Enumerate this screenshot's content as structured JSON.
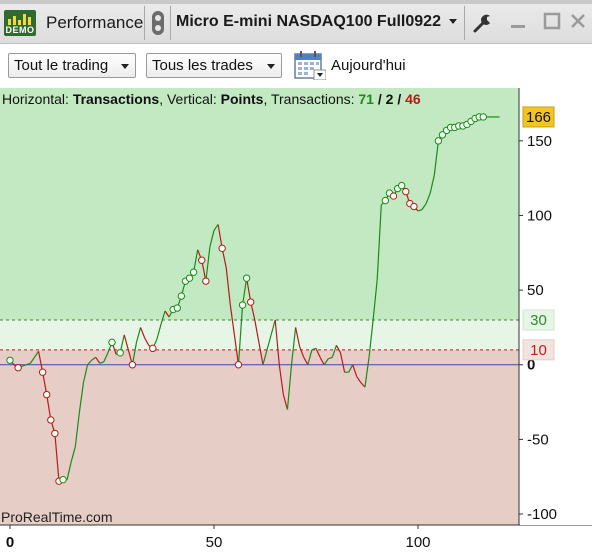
{
  "titlebar": {
    "badge_label": "DEMO",
    "panel_title": "Performance",
    "instrument": "Micro E-mini NASDAQ100 Full0922"
  },
  "toolbar": {
    "scope_select": "Tout le trading",
    "trades_select": "Tous les trades",
    "date_label": "Aujourd'hui"
  },
  "stats": {
    "horizontal_label": "Horizontal:",
    "horizontal_value": "Transactions",
    "vertical_label": "Vertical:",
    "vertical_value": "Points",
    "transactions_label": "Transactions:",
    "winners": "71",
    "neutral": "2",
    "losers": "46",
    "slash": "/"
  },
  "watermark": "ProRealTime.com",
  "colors": {
    "profit_zone": "#c2e9c2",
    "profit_band": "#e6f5e6",
    "loss_zone": "#e6cdc6",
    "gain_line": "#1b8a1b",
    "loss_line": "#b51c1c",
    "zero_line": "#3b4bb0",
    "marker_fill": "#f2fff2",
    "value_badge": "#f3c522",
    "value_30": "#2e8b2e",
    "value_10": "#b22222",
    "winners": "#1c8a1c",
    "losers": "#b01c1c"
  },
  "icons": {
    "badge": "demo-badge-icon",
    "link": "link-icon",
    "wrench": "wrench-icon",
    "minimize": "minimize-icon",
    "maximize": "maximize-icon",
    "close": "close-icon",
    "calendar": "calendar-icon"
  },
  "chart_data": {
    "type": "line",
    "xlabel": "",
    "ylabel": "",
    "xlim": [
      0,
      122
    ],
    "ylim": [
      -102,
      172
    ],
    "x_ticks": [
      0,
      50,
      100
    ],
    "y_ticks": [
      -100,
      -50,
      0,
      50,
      100,
      150
    ],
    "current_value": 166,
    "reference_levels": [
      30,
      10
    ],
    "grid": false,
    "series": [
      {
        "x": [
          0,
          1,
          2,
          3,
          4,
          5,
          6,
          7,
          8,
          9,
          10,
          11,
          12,
          13,
          14,
          15,
          16,
          17,
          18,
          19,
          20,
          21,
          22,
          23,
          24,
          25,
          26,
          27,
          28,
          29,
          30,
          31,
          32,
          33,
          34,
          35,
          36,
          37,
          38,
          39,
          40,
          41,
          42,
          43,
          44,
          45,
          46,
          47,
          48,
          49,
          50,
          51,
          52,
          53,
          54,
          55,
          56,
          57,
          58,
          59,
          60,
          61,
          62,
          63,
          64,
          65,
          66,
          67,
          68,
          69,
          70,
          71,
          72,
          73,
          74,
          75,
          76,
          77,
          78,
          79,
          80,
          81,
          82,
          83,
          84,
          85,
          86,
          87,
          88,
          89,
          90,
          91,
          92,
          93,
          94,
          95,
          96,
          97,
          98,
          99,
          100,
          101,
          102,
          103,
          104,
          105,
          106,
          107,
          108,
          109,
          110,
          111,
          112,
          113,
          114,
          115,
          116,
          117,
          118,
          119,
          120
        ],
        "y": [
          3,
          0,
          -2,
          -1,
          0,
          1,
          5,
          9,
          -5,
          -20,
          -37,
          -46,
          -78,
          -77,
          -77,
          -65,
          -55,
          -32,
          -12,
          0,
          3,
          5,
          1,
          2,
          8,
          15,
          7,
          8,
          20,
          10,
          0,
          15,
          25,
          18,
          13,
          11,
          17,
          27,
          36,
          32,
          37,
          38,
          46,
          56,
          58,
          62,
          77,
          70,
          56,
          79,
          90,
          94,
          78,
          65,
          40,
          20,
          0,
          40,
          58,
          42,
          30,
          15,
          0,
          10,
          20,
          30,
          0,
          -20,
          -30,
          0,
          25,
          12,
          5,
          0,
          10,
          11,
          5,
          0,
          4,
          5,
          13,
          8,
          -5,
          -5,
          0,
          -8,
          -12,
          -15,
          5,
          30,
          57,
          107,
          110,
          115,
          113,
          118,
          120,
          116,
          108,
          106,
          103,
          104,
          108,
          115,
          127,
          150,
          154,
          157,
          159,
          159,
          160,
          160,
          161,
          163,
          165,
          166,
          166,
          166,
          166,
          166,
          166
        ]
      }
    ],
    "markers_x": [
      0,
      2,
      8,
      9,
      10,
      11,
      12,
      13,
      25,
      27,
      30,
      35,
      40,
      41,
      42,
      43,
      44,
      45,
      47,
      48,
      52,
      56,
      57,
      58,
      59,
      92,
      93,
      94,
      95,
      96,
      97,
      98,
      99,
      105,
      106,
      107,
      108,
      109,
      110,
      111,
      112,
      113,
      114,
      115,
      116
    ]
  }
}
